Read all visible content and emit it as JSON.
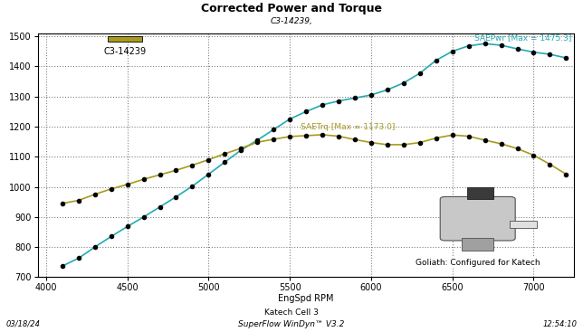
{
  "chart_data": {
    "type": "line",
    "title": "Corrected Power and Torque",
    "subtitle": "C3-14239,",
    "run_label": "C3-14239",
    "x_label": "EngSpd RPM",
    "x": [
      4100,
      4200,
      4300,
      4400,
      4500,
      4600,
      4700,
      4800,
      4900,
      5000,
      5100,
      5200,
      5300,
      5400,
      5500,
      5600,
      5700,
      5800,
      5900,
      6000,
      6100,
      6200,
      6300,
      6400,
      6500,
      6600,
      6700,
      6800,
      6900,
      7000,
      7100,
      7200
    ],
    "series": [
      {
        "name": "SAEPwr [Max = 1475.3]",
        "color": "#23a9b3",
        "marker": "o",
        "line_style": "solid",
        "values": [
          737,
          763,
          800,
          835,
          868,
          900,
          933,
          967,
          1002,
          1042,
          1082,
          1122,
          1155,
          1190,
          1225,
          1250,
          1272,
          1285,
          1295,
          1305,
          1322,
          1345,
          1377,
          1420,
          1450,
          1468,
          1475.3,
          1470,
          1458,
          1447,
          1440,
          1428
        ]
      },
      {
        "name": "SAETrq [Max = 1173.0]",
        "color": "#a89a1c",
        "marker": "o",
        "line_style": "solid",
        "values": [
          945,
          955,
          975,
          993,
          1008,
          1025,
          1040,
          1055,
          1072,
          1090,
          1110,
          1128,
          1148,
          1158,
          1167,
          1170,
          1173,
          1168,
          1157,
          1147,
          1140,
          1140,
          1147,
          1162,
          1172,
          1168,
          1155,
          1143,
          1127,
          1105,
          1075,
          1042
        ]
      }
    ],
    "xlim": [
      3950,
      7250
    ],
    "ylim": [
      700,
      1510
    ],
    "xticks": [
      4000,
      4500,
      5000,
      5500,
      6000,
      6500,
      7000
    ],
    "yticks": [
      700,
      800,
      900,
      1000,
      1100,
      1200,
      1300,
      1400,
      1500
    ],
    "grid": true,
    "image_caption": "Goliath: Configured for Katech",
    "footer": {
      "date": "03/18/24",
      "station": "Katech Cell 3",
      "software": "SuperFlow WinDyn™ V3.2",
      "time": "12:54:10"
    }
  }
}
